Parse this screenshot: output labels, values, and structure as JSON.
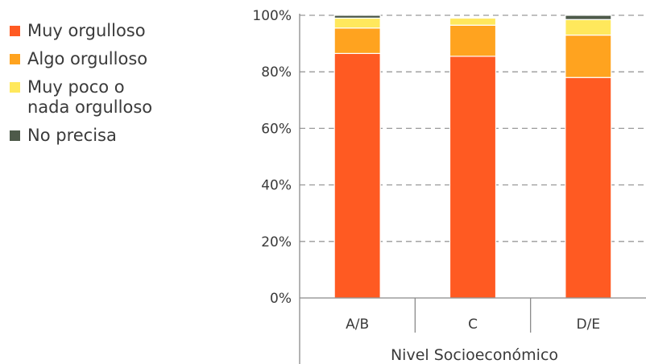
{
  "chart_data": {
    "type": "bar",
    "stacked": true,
    "categories": [
      "A/B",
      "C",
      "D/E"
    ],
    "series": [
      {
        "name": "Muy orgulloso",
        "color": "#FF5A22",
        "values": [
          86.5,
          85.5,
          78.0
        ]
      },
      {
        "name": "Algo orgulloso",
        "color": "#FFA31F",
        "values": [
          9.0,
          11.0,
          15.0
        ]
      },
      {
        "name": "Muy poco o nada orgulloso",
        "color": "#FFE85C",
        "values": [
          3.5,
          2.5,
          5.5
        ]
      },
      {
        "name": "No precisa",
        "color": "#4E5A4A",
        "values": [
          1.0,
          0.0,
          1.5
        ]
      }
    ],
    "xlabel": "Nivel Socioeconómico",
    "ylabel": "",
    "ylim": [
      0,
      100
    ],
    "yticks": [
      "0%",
      "20%",
      "40%",
      "60%",
      "80%",
      "100%"
    ],
    "grid": true,
    "legend_position": "left"
  },
  "legend": {
    "items": [
      {
        "label_lines": [
          "Muy orgulloso"
        ],
        "color": "#FF5A22"
      },
      {
        "label_lines": [
          "Algo orgulloso"
        ],
        "color": "#FFA31F"
      },
      {
        "label_lines": [
          "Muy poco o",
          "nada orgulloso"
        ],
        "color": "#FFE85C"
      },
      {
        "label_lines": [
          "No precisa"
        ],
        "color": "#4E5A4A"
      }
    ]
  }
}
